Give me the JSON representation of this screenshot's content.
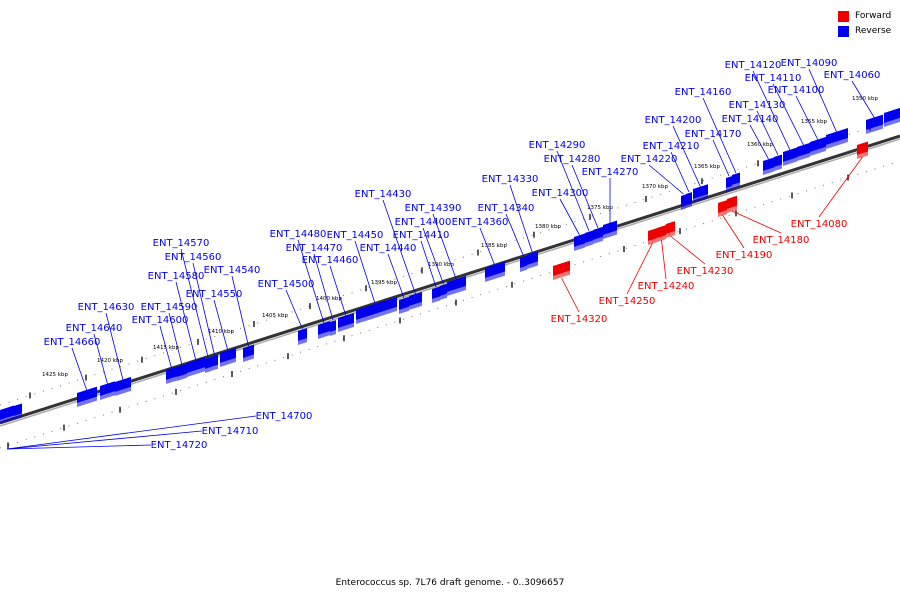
{
  "legend": {
    "forward_label": "Forward",
    "reverse_label": "Reverse",
    "forward_color": "#ee0000",
    "reverse_color": "#0000ee"
  },
  "caption": "Enterococcus sp. 7L76 draft genome. - 0..3096657",
  "colors": {
    "forward": "#ee0000",
    "reverse": "#0000ee",
    "backbone": "#555555"
  },
  "ruler_labels": [
    "1350 kbp",
    "1355 kbp",
    "1360 kbp",
    "1365 kbp",
    "1370 kbp",
    "1375 kbp",
    "1380 kbp",
    "1385 kbp",
    "1390 kbp",
    "1395 kbp",
    "1400 kbp",
    "1405 kbp",
    "1410 kbp",
    "1415 kbp",
    "1420 kbp",
    "1425 kbp"
  ],
  "reverse_genes": [
    "ENT_14060",
    "ENT_14090",
    "ENT_14100",
    "ENT_14110",
    "ENT_14120",
    "ENT_14130",
    "ENT_14140",
    "ENT_14160",
    "ENT_14170",
    "ENT_14200",
    "ENT_14210",
    "ENT_14220",
    "ENT_14270",
    "ENT_14280",
    "ENT_14290",
    "ENT_14300",
    "ENT_14330",
    "ENT_14340",
    "ENT_14360",
    "ENT_14390",
    "ENT_14400",
    "ENT_14410",
    "ENT_14430",
    "ENT_14440",
    "ENT_14450",
    "ENT_14460",
    "ENT_14470",
    "ENT_14480",
    "ENT_14500",
    "ENT_14540",
    "ENT_14550",
    "ENT_14560",
    "ENT_14570",
    "ENT_14580",
    "ENT_14590",
    "ENT_14600",
    "ENT_14630",
    "ENT_14640",
    "ENT_14660"
  ],
  "forward_genes": [
    "ENT_14080",
    "ENT_14180",
    "ENT_14190",
    "ENT_14230",
    "ENT_14240",
    "ENT_14250",
    "ENT_14320"
  ],
  "far_labels": [
    "ENT_14700",
    "ENT_14710",
    "ENT_14720"
  ]
}
